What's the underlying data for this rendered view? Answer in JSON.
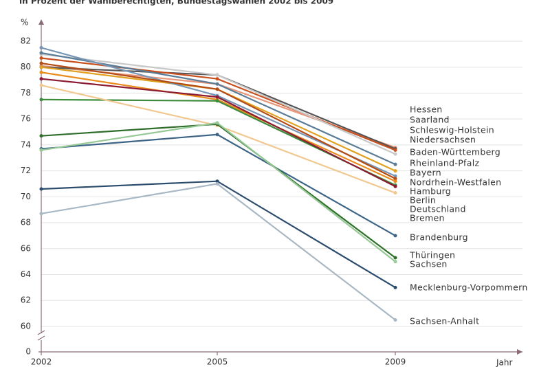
{
  "chart_data": {
    "type": "line",
    "subtitle": "in Prozent der Wahlberechtigten, Bundestagswahlen 2002 bis 2009",
    "y_unit": "%",
    "x_label": "Jahr",
    "categories": [
      "2002",
      "2005",
      "2009"
    ],
    "ylim": [
      0,
      82.5
    ],
    "y_break": [
      0,
      59
    ],
    "yticks": [
      0,
      60,
      62,
      64,
      66,
      68,
      70,
      72,
      74,
      76,
      78,
      80,
      82
    ],
    "grid": true,
    "series": [
      {
        "name": "Hessen",
        "color": "#e8967a",
        "values": [
          80.1,
          78.7,
          73.8
        ]
      },
      {
        "name": "Saarland",
        "color": "#555555",
        "values": [
          80.0,
          79.4,
          73.7
        ]
      },
      {
        "name": "Schleswig-Holstein",
        "color": "#c8501e",
        "values": [
          80.7,
          79.1,
          73.6
        ]
      },
      {
        "name": "Niedersachsen",
        "color": "#c8c8c8",
        "values": [
          81.0,
          79.4,
          73.3
        ]
      },
      {
        "name": "Baden-Württemberg",
        "color": "#5a7c96",
        "values": [
          81.1,
          78.7,
          72.5
        ]
      },
      {
        "name": "Rheinland-Pfalz",
        "color": "#e0a020",
        "values": [
          80.0,
          78.3,
          72.0
        ]
      },
      {
        "name": "Bayern",
        "color": "#7896b4",
        "values": [
          81.5,
          77.8,
          71.6
        ]
      },
      {
        "name": "Nordrhein-Westfalen",
        "color": "#b44a14",
        "values": [
          80.3,
          78.3,
          71.4
        ]
      },
      {
        "name": "Hamburg",
        "color": "#e88c1e",
        "values": [
          79.6,
          77.5,
          71.2
        ]
      },
      {
        "name": "Berlin",
        "color": "#3c8c3c",
        "values": [
          77.5,
          77.4,
          70.9
        ]
      },
      {
        "name": "Deutschland",
        "color": "#8c1a32",
        "values": [
          79.1,
          77.7,
          70.8
        ]
      },
      {
        "name": "Bremen",
        "color": "#f0c890",
        "values": [
          78.6,
          75.5,
          70.3
        ]
      },
      {
        "name": "Brandenburg",
        "color": "#3c6486",
        "values": [
          73.7,
          74.8,
          67.0
        ]
      },
      {
        "name": "Thüringen",
        "color": "#2e6e2a",
        "values": [
          74.7,
          75.6,
          65.3
        ]
      },
      {
        "name": "Sachsen",
        "color": "#96c896",
        "values": [
          73.6,
          75.7,
          65.0
        ]
      },
      {
        "name": "Mecklenburg-Vorpommern",
        "color": "#2c4c6e",
        "values": [
          70.6,
          71.2,
          63.0
        ]
      },
      {
        "name": "Sachsen-Anhalt",
        "color": "#a8b8c4",
        "values": [
          68.7,
          71.0,
          60.5
        ]
      }
    ]
  }
}
